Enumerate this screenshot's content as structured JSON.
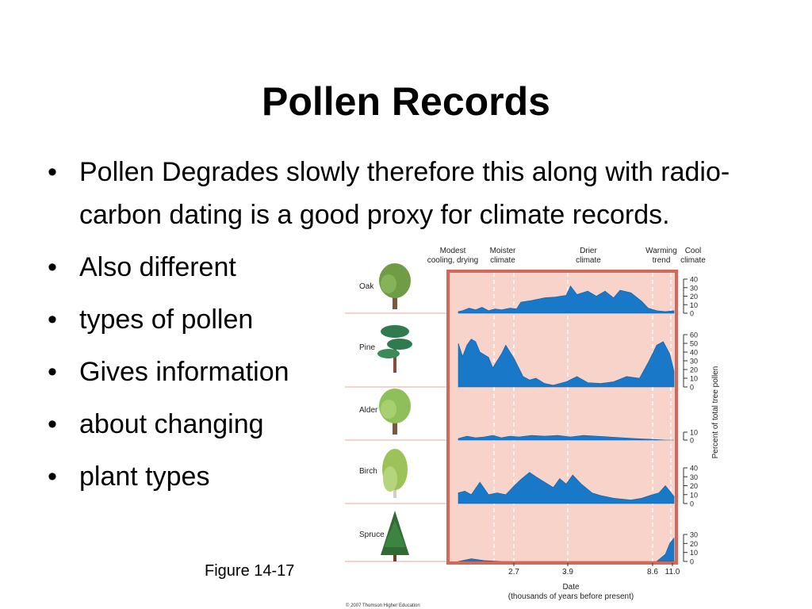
{
  "slide": {
    "title": "Pollen Records",
    "bullets": [
      "Pollen Degrades slowly therefore this along with radio-carbon dating is a good proxy for climate records.",
      "Also different",
      "types of pollen",
      "Gives information",
      " about changing",
      "plant types"
    ],
    "figure_label": "Figure 14-17"
  },
  "figure": {
    "headers": [
      {
        "line1": "Modest",
        "line2": "cooling, drying"
      },
      {
        "line1": "Moister",
        "line2": "climate"
      },
      {
        "line1": "Drier",
        "line2": "climate"
      },
      {
        "line1": "Warming",
        "line2": "trend"
      },
      {
        "line1": "Cool",
        "line2": "climate"
      }
    ],
    "x_ticks": [
      "2.7",
      "3.9",
      "8.6",
      "11.0"
    ],
    "x_label_line1": "Date",
    "x_label_line2": "(thousands of years before present)",
    "y_axis_label": "Percent of total tree pollen",
    "copyright": "© 2007 Thomson Higher Education",
    "colors": {
      "panel_bg": "#f7d3c9",
      "panel_border": "#d2675a",
      "fill": "#1a78c8",
      "separator": "#e7a79c"
    }
  },
  "chart_data": {
    "type": "area",
    "xlabel": "Date\n(thousands of years before present)",
    "ylabel": "Percent of total tree pollen",
    "x_tick_labels": [
      "2.7",
      "3.9",
      "8.6",
      "11.0"
    ],
    "series": [
      {
        "name": "Oak",
        "y_ticks": [
          0,
          10,
          20,
          30,
          40
        ],
        "ylim": [
          0,
          40
        ],
        "points": [
          [
            0.0,
            2
          ],
          [
            0.02,
            3
          ],
          [
            0.05,
            6
          ],
          [
            0.08,
            4
          ],
          [
            0.11,
            7
          ],
          [
            0.14,
            3
          ],
          [
            0.17,
            5
          ],
          [
            0.2,
            4
          ],
          [
            0.24,
            6
          ],
          [
            0.27,
            5
          ],
          [
            0.29,
            13
          ],
          [
            0.34,
            15
          ],
          [
            0.4,
            18
          ],
          [
            0.45,
            19
          ],
          [
            0.5,
            21
          ],
          [
            0.52,
            32
          ],
          [
            0.55,
            22
          ],
          [
            0.6,
            26
          ],
          [
            0.64,
            20
          ],
          [
            0.68,
            26
          ],
          [
            0.72,
            18
          ],
          [
            0.75,
            27
          ],
          [
            0.8,
            24
          ],
          [
            0.85,
            14
          ],
          [
            0.88,
            6
          ],
          [
            0.92,
            3
          ],
          [
            0.96,
            2
          ],
          [
            1.0,
            3
          ]
        ]
      },
      {
        "name": "Pine",
        "y_ticks": [
          0,
          10,
          20,
          30,
          40,
          50,
          60
        ],
        "ylim": [
          0,
          60
        ],
        "points": [
          [
            0.0,
            50
          ],
          [
            0.02,
            35
          ],
          [
            0.04,
            48
          ],
          [
            0.06,
            55
          ],
          [
            0.08,
            52
          ],
          [
            0.1,
            40
          ],
          [
            0.14,
            34
          ],
          [
            0.16,
            22
          ],
          [
            0.2,
            38
          ],
          [
            0.22,
            48
          ],
          [
            0.26,
            32
          ],
          [
            0.3,
            12
          ],
          [
            0.33,
            8
          ],
          [
            0.36,
            10
          ],
          [
            0.4,
            4
          ],
          [
            0.44,
            2
          ],
          [
            0.5,
            6
          ],
          [
            0.55,
            12
          ],
          [
            0.6,
            5
          ],
          [
            0.66,
            4
          ],
          [
            0.72,
            6
          ],
          [
            0.78,
            12
          ],
          [
            0.84,
            10
          ],
          [
            0.88,
            28
          ],
          [
            0.92,
            48
          ],
          [
            0.95,
            52
          ],
          [
            0.98,
            38
          ],
          [
            1.0,
            18
          ]
        ]
      },
      {
        "name": "Alder",
        "y_ticks": [
          0,
          10
        ],
        "ylim": [
          0,
          10
        ],
        "points": [
          [
            0.0,
            2
          ],
          [
            0.04,
            5
          ],
          [
            0.08,
            3
          ],
          [
            0.12,
            4
          ],
          [
            0.16,
            6
          ],
          [
            0.2,
            3
          ],
          [
            0.24,
            5
          ],
          [
            0.28,
            4
          ],
          [
            0.34,
            6
          ],
          [
            0.4,
            5
          ],
          [
            0.46,
            6
          ],
          [
            0.52,
            4
          ],
          [
            0.58,
            6
          ],
          [
            0.64,
            5
          ],
          [
            0.7,
            4
          ],
          [
            0.76,
            3
          ],
          [
            0.82,
            2
          ],
          [
            0.9,
            1
          ],
          [
            0.96,
            0
          ],
          [
            1.0,
            0
          ]
        ]
      },
      {
        "name": "Birch",
        "y_ticks": [
          0,
          10,
          20,
          30,
          40
        ],
        "ylim": [
          0,
          40
        ],
        "points": [
          [
            0.0,
            12
          ],
          [
            0.03,
            14
          ],
          [
            0.06,
            10
          ],
          [
            0.1,
            24
          ],
          [
            0.14,
            10
          ],
          [
            0.18,
            12
          ],
          [
            0.22,
            10
          ],
          [
            0.26,
            20
          ],
          [
            0.29,
            27
          ],
          [
            0.33,
            35
          ],
          [
            0.36,
            30
          ],
          [
            0.4,
            24
          ],
          [
            0.44,
            18
          ],
          [
            0.47,
            28
          ],
          [
            0.5,
            22
          ],
          [
            0.53,
            32
          ],
          [
            0.57,
            22
          ],
          [
            0.62,
            12
          ],
          [
            0.66,
            9
          ],
          [
            0.72,
            6
          ],
          [
            0.8,
            4
          ],
          [
            0.85,
            6
          ],
          [
            0.9,
            10
          ],
          [
            0.93,
            12
          ],
          [
            0.96,
            20
          ],
          [
            1.0,
            8
          ]
        ]
      },
      {
        "name": "Spruce",
        "y_ticks": [
          0,
          10,
          20,
          30
        ],
        "ylim": [
          0,
          30
        ],
        "points": [
          [
            0.0,
            0
          ],
          [
            0.06,
            3
          ],
          [
            0.12,
            1
          ],
          [
            0.2,
            0
          ],
          [
            0.8,
            0
          ],
          [
            0.92,
            0
          ],
          [
            0.96,
            8
          ],
          [
            0.98,
            20
          ],
          [
            1.0,
            26
          ]
        ]
      }
    ]
  }
}
